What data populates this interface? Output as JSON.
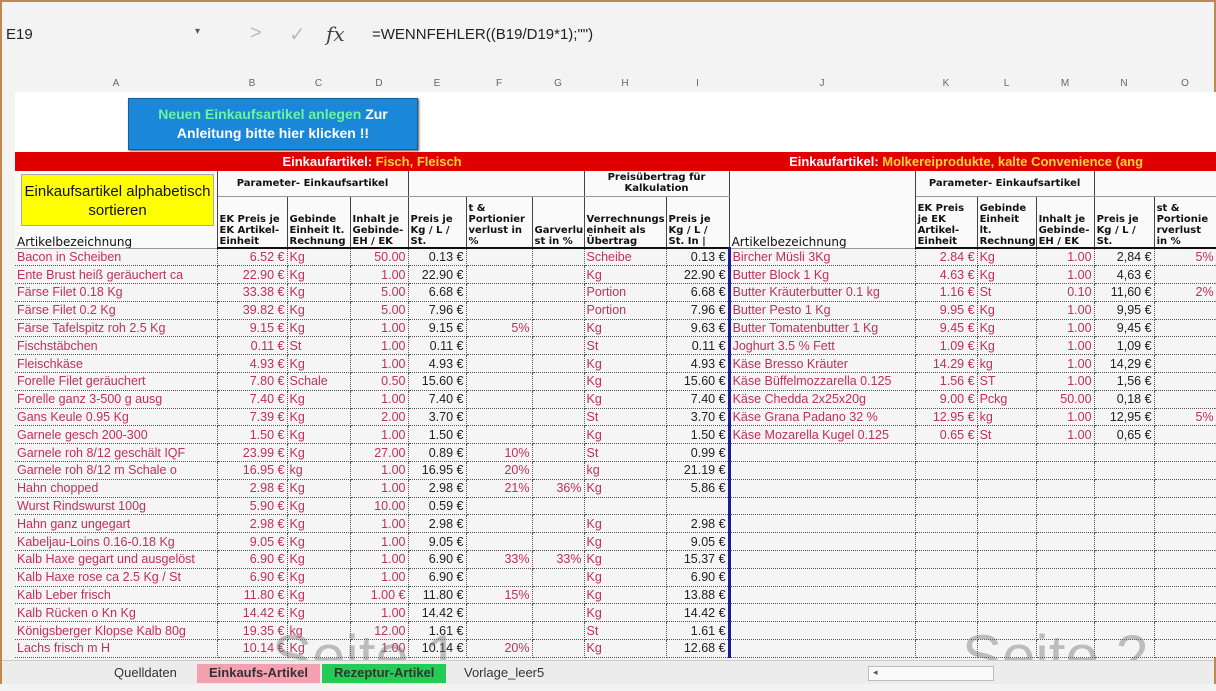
{
  "formula_bar": {
    "name_box": "E19",
    "formula": "=WENNFEHLER((B19/D19*1);\"\")",
    "fx": "fx",
    "cancel": "✓",
    "enter": ">"
  },
  "columns": [
    "A",
    "B",
    "C",
    "D",
    "E",
    "F",
    "G",
    "H",
    "I",
    "J",
    "K",
    "L",
    "M",
    "N",
    "O"
  ],
  "buttons": {
    "new_article_green": "Neuen Einkaufsartikel anlegen",
    "new_article_white": " Zur Anleitung bitte hier klicken !!",
    "sort": "Einkaufsartikel alphabetisch sortieren"
  },
  "left": {
    "title_prefix": "Einkaufartikel: ",
    "title_suffix": "Fisch, Fleisch",
    "group_param": "Parameter- Einkaufsartikel",
    "group_transfer": "Preisübertrag für Kalkulation",
    "headers": [
      "Artikelbezeichnung",
      "EK Preis je EK Artikel-Einheit",
      "Gebinde Einheit lt. Rechnung",
      "Inhalt je Gebinde-EH / EK",
      "Preis je Kg / L / St.",
      "t & Portionier verlust in %",
      "Garverlu st in %",
      "Verrechnungs einheit als Übertrag",
      "Preis je Kg / L / St. In |"
    ],
    "rows": [
      [
        "Bacon  in Scheiben",
        "6.52 €",
        "Kg",
        "50.00",
        "0.13 €",
        "",
        "",
        "Scheibe",
        "0.13 €"
      ],
      [
        "Ente  Brust  heiß geräuchert ca",
        "22.90 €",
        "Kg",
        "1.00",
        "22.90 €",
        "",
        "",
        "Kg",
        "22.90 €"
      ],
      [
        "Färse  Filet  0.18 Kg",
        "33.38 €",
        "Kg",
        "5.00",
        "6.68 €",
        "",
        "",
        "Portion",
        "6.68 €"
      ],
      [
        "Färse  Filet  0.2 Kg",
        "39.82 €",
        "Kg",
        "5.00",
        "7.96 €",
        "",
        "",
        "Portion",
        "7.96 €"
      ],
      [
        "Färse  Tafelspitz  roh 2.5 Kg",
        "9.15 €",
        "Kg",
        "1.00",
        "9.15 €",
        "5%",
        "",
        "Kg",
        "9.63 €"
      ],
      [
        "Fischstäbchen",
        "0.11 €",
        "St",
        "1.00",
        "0.11 €",
        "",
        "",
        "St",
        "0.11 €"
      ],
      [
        "Fleischkäse",
        "4.93 €",
        "Kg",
        "1.00",
        "4.93 €",
        "",
        "",
        "Kg",
        "4.93 €"
      ],
      [
        "Forelle  Filet  geräuchert",
        "7.80 €",
        "Schale",
        "0.50",
        "15.60 €",
        "",
        "",
        "Kg",
        "15.60 €"
      ],
      [
        "Forelle  ganz  3-500 g  ausg",
        "7.40 €",
        "Kg",
        "1.00",
        "7.40 €",
        "",
        "",
        "Kg",
        "7.40 €"
      ],
      [
        "Gans  Keule  0.95 Kg",
        "7.39 €",
        "Kg",
        "2.00",
        "3.70 €",
        "",
        "",
        "St",
        "3.70 €"
      ],
      [
        "Garnele  gesch  200-300",
        "1.50 €",
        "Kg",
        "1.00",
        "1.50 €",
        "",
        "",
        "Kg",
        "1.50 €"
      ],
      [
        "Garnele  roh  8/12  geschält  IQF",
        "23.99 €",
        "Kg",
        "27.00",
        "0.89 €",
        "10%",
        "",
        "St",
        "0.99 €"
      ],
      [
        "Garnele  roh  8/12  m  Schale  o",
        "16.95 €",
        "kg",
        "1.00",
        "16.95 €",
        "20%",
        "",
        "kg",
        "21.19 €"
      ],
      [
        "Hahn  chopped",
        "2.98 €",
        "Kg",
        "1.00",
        "2.98 €",
        "21%",
        "36%",
        "Kg",
        "5.86 €"
      ],
      [
        "Wurst  Rindswurst  100g",
        "5.90 €",
        "Kg",
        "10.00",
        "0.59 €",
        "",
        "",
        "",
        ""
      ],
      [
        "Hahn  ganz  ungegart",
        "2.98 €",
        "Kg",
        "1.00",
        "2.98 €",
        "",
        "",
        "Kg",
        "2.98 €"
      ],
      [
        "Kabeljau-Loins 0.16-0.18 Kg",
        "9.05 €",
        "Kg",
        "1.00",
        "9.05 €",
        "",
        "",
        "Kg",
        "9.05 €"
      ],
      [
        "Kalb  Haxe  gegart und ausgelöst",
        "6.90 €",
        "Kg",
        "1.00",
        "6.90 €",
        "33%",
        "33%",
        "Kg",
        "15.37 €"
      ],
      [
        "Kalb  Haxe  rose  ca  2.5 Kg / St",
        "6.90 €",
        "Kg",
        "1.00",
        "6.90 €",
        "",
        "",
        "Kg",
        "6.90 €"
      ],
      [
        "Kalb  Leber  frisch",
        "11.80 €",
        "Kg",
        "1.00 €",
        "11.80 €",
        "15%",
        "",
        "Kg",
        "13.88 €"
      ],
      [
        "Kalb  Rücken  o Kn  Kg",
        "14.42 €",
        "Kg",
        "1.00",
        "14.42 €",
        "",
        "",
        "Kg",
        "14.42 €"
      ],
      [
        "Königsberger Klopse  Kalb  80g",
        "19.35 €",
        "kg",
        "12.00",
        "1.61 €",
        "",
        "",
        "St",
        "1.61 €"
      ],
      [
        "Lachs  frisch  m  H",
        "10.14 €",
        "Kg",
        "1.00",
        "10.14 €",
        "20%",
        "",
        "Kg",
        "12.68 €"
      ]
    ]
  },
  "right": {
    "title_prefix": "Einkaufartikel: ",
    "title_suffix": "Molkereiprodukte, kalte Convenience (ang",
    "group_param": "Parameter- Einkaufsartikel",
    "headers": [
      "Artikelbezeichnung",
      "EK Preis je EK Artikel-Einheit",
      "Gebinde Einheit lt. Rechnung",
      "Inhalt je Gebinde-EH / EK",
      "Preis je Kg / L / St.",
      "st & Portionie rverlust in %"
    ],
    "rows": [
      [
        "Bircher Müsli  3Kg",
        "2.84 €",
        "Kg",
        "1.00",
        "2,84 €",
        "5%"
      ],
      [
        "Butter  Block  1 Kg",
        "4.63 €",
        "Kg",
        "1.00",
        "4,63 €",
        ""
      ],
      [
        "Butter  Kräuterbutter  0.1 kg",
        "1.16 €",
        "St",
        "0.10",
        "11,60 €",
        "2%"
      ],
      [
        "Butter  Pesto  1 Kg",
        "9.95 €",
        "Kg",
        "1.00",
        "9,95 €",
        ""
      ],
      [
        "Butter  Tomatenbutter  1 Kg",
        "9.45 €",
        "Kg",
        "1.00",
        "9,45 €",
        ""
      ],
      [
        "Joghurt  3.5 % Fett",
        "1.09 €",
        "Kg",
        "1.00",
        "1,09 €",
        ""
      ],
      [
        "Käse  Bresso  Kräuter",
        "14.29 €",
        "kg",
        "1.00",
        "14,29 €",
        ""
      ],
      [
        "Käse  Büffelmozzarella  0.125",
        "1.56 €",
        "ST",
        "1.00",
        "1,56 €",
        ""
      ],
      [
        "Käse  Chedda  2x25x20g",
        "9.00 €",
        "Pckg",
        "50.00",
        "0,18 €",
        ""
      ],
      [
        "Käse  Grana Padano  32 %",
        "12.95 €",
        "kg",
        "1.00",
        "12,95 €",
        "5%"
      ],
      [
        "Käse  Mozarella  Kugel  0.125",
        "0.65 €",
        "St",
        "1.00",
        "0,65 €",
        ""
      ]
    ]
  },
  "watermarks": [
    "Seite 1",
    "Seite 2"
  ],
  "sheet_tabs": [
    {
      "label": "Quelldaten",
      "color": ""
    },
    {
      "label": "Einkaufs-Artikel",
      "color": "#f5a0b0",
      "active": true
    },
    {
      "label": "Rezeptur-Artikel",
      "color": "#22cc55"
    },
    {
      "label": "Vorlage_leer5",
      "color": ""
    }
  ]
}
